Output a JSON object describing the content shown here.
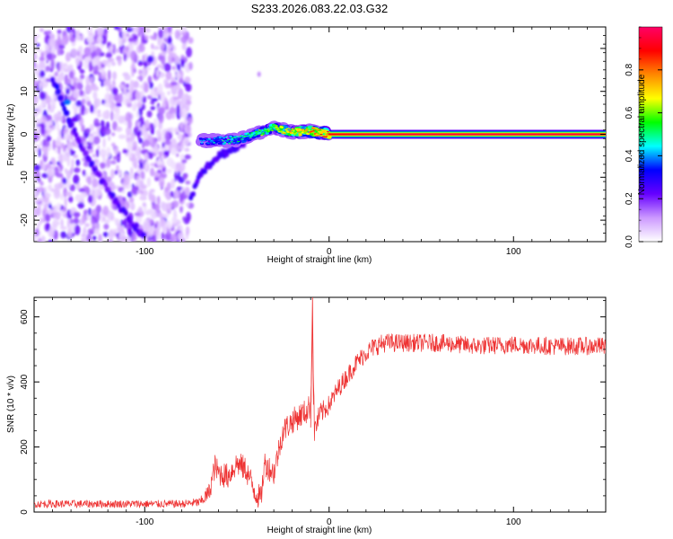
{
  "title": "S233.2026.083.22.03.G32",
  "chart_data": [
    {
      "type": "heatmap",
      "name": "spectrogram",
      "xlabel": "Height of straight line (km)",
      "ylabel": "Frequency (Hz)",
      "xlim": [
        -160,
        150
      ],
      "ylim": [
        -25,
        25
      ],
      "xticks": [
        -100,
        0,
        100
      ],
      "yticks": [
        -20,
        -10,
        0,
        10,
        20
      ],
      "colorbar": {
        "label": "Normalized spectral amplitude",
        "range": [
          0,
          1
        ],
        "ticks": [
          0.0,
          0.2,
          0.4,
          0.6,
          0.8
        ],
        "tick_labels": [
          "0.0",
          "0.2",
          "0.4",
          "0.6",
          "0.8"
        ],
        "colormap": [
          "#ffffff",
          "#cc99ff",
          "#6600ff",
          "#0000ff",
          "#00ffff",
          "#00ff00",
          "#ffff00",
          "#ff8800",
          "#ff0000",
          "#ff0066"
        ]
      },
      "features": {
        "noise_region_x": [
          -160,
          -75
        ],
        "noise_region_y": [
          -25,
          25
        ],
        "diagonal_trace": {
          "x": [
            -150,
            -145,
            -140,
            -130,
            -120,
            -110,
            -100
          ],
          "y": [
            13,
            8,
            2,
            -6,
            -13,
            -19,
            -24
          ]
        },
        "lower_trace": {
          "x": [
            -75,
            -70,
            -60,
            -50,
            -45
          ],
          "y": [
            -15,
            -9,
            -5,
            -3,
            -2
          ]
        },
        "carrier_line": {
          "x": [
            -70,
            -60,
            -50,
            -40,
            -30,
            -20,
            -10,
            0,
            20,
            50,
            100,
            150
          ],
          "y": [
            -1.5,
            -1.5,
            -1.2,
            0,
            1.5,
            0.5,
            0.8,
            0,
            0,
            0,
            0,
            0
          ],
          "amplitude": [
            0.4,
            0.45,
            0.5,
            0.55,
            0.65,
            0.75,
            0.8,
            0.9,
            0.95,
            0.97,
            0.97,
            0.97
          ]
        }
      }
    },
    {
      "type": "line",
      "name": "snr",
      "xlabel": "Height of straight line (km)",
      "ylabel": "SNR (10 * v/v)",
      "xlim": [
        -160,
        150
      ],
      "ylim": [
        0,
        660
      ],
      "xticks": [
        -100,
        0,
        100
      ],
      "yticks": [
        0,
        200,
        400,
        600
      ],
      "color": "#ee3333",
      "series": [
        {
          "name": "SNR",
          "x": [
            -160,
            -140,
            -120,
            -100,
            -80,
            -70,
            -65,
            -62,
            -60,
            -55,
            -50,
            -45,
            -40,
            -37,
            -35,
            -30,
            -25,
            -20,
            -15,
            -12,
            -10,
            -9,
            -8,
            -5,
            0,
            5,
            10,
            15,
            20,
            25,
            30,
            40,
            60,
            80,
            100,
            120,
            150
          ],
          "y": [
            25,
            25,
            25,
            25,
            25,
            30,
            60,
            140,
            120,
            110,
            150,
            130,
            60,
            40,
            150,
            120,
            250,
            280,
            300,
            310,
            330,
            600,
            250,
            300,
            330,
            380,
            420,
            460,
            490,
            510,
            520,
            520,
            520,
            510,
            515,
            510,
            510
          ],
          "noise_amplitude": [
            12,
            12,
            12,
            12,
            12,
            15,
            30,
            40,
            40,
            40,
            40,
            40,
            40,
            40,
            40,
            40,
            40,
            40,
            40,
            40,
            40,
            40,
            40,
            35,
            30,
            30,
            30,
            30,
            30,
            30,
            30,
            28,
            28,
            28,
            28,
            28,
            28
          ]
        }
      ]
    }
  ]
}
